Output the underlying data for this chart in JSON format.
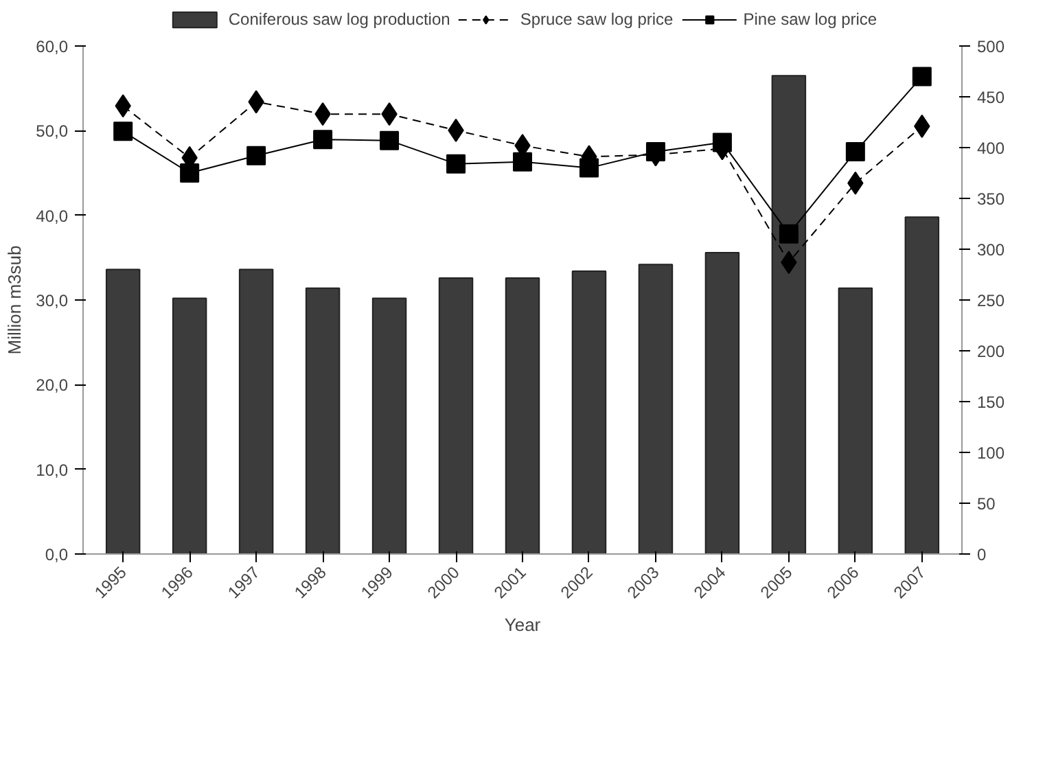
{
  "chart_data": {
    "type": "bar",
    "xlabel": "Year",
    "ylabel": "Million m3sub",
    "categories": [
      "1995",
      "1996",
      "1997",
      "1998",
      "1999",
      "2000",
      "2001",
      "2002",
      "2003",
      "2004",
      "2005",
      "2006",
      "2007"
    ],
    "ylim": [
      0,
      60
    ],
    "yticks": [
      {
        "value": 0,
        "label": "0,0"
      },
      {
        "value": 10,
        "label": "10,0"
      },
      {
        "value": 20,
        "label": "20,0"
      },
      {
        "value": 30,
        "label": "30,0"
      },
      {
        "value": 40,
        "label": "40,0"
      },
      {
        "value": 50,
        "label": "50,0"
      },
      {
        "value": 60,
        "label": "60,0"
      }
    ],
    "y2lim": [
      0,
      500
    ],
    "y2ticks": [
      0,
      50,
      100,
      150,
      200,
      250,
      300,
      350,
      400,
      450,
      500
    ],
    "legend": "top",
    "grid": false,
    "series": [
      {
        "name": "Coniferous saw log production",
        "type": "bar",
        "color": "#3c3c3c",
        "values": [
          33.6,
          30.2,
          33.6,
          31.4,
          30.2,
          32.6,
          32.6,
          33.4,
          34.2,
          35.6,
          56.5,
          31.4,
          39.8
        ]
      },
      {
        "name": "Spruce saw log price",
        "type": "line",
        "axis": "y2",
        "color": "#000000",
        "marker": "diamond",
        "line_style": "dashed",
        "values": [
          441,
          390,
          445,
          433,
          433,
          417,
          402,
          391,
          393,
          399,
          287,
          365,
          421
        ]
      },
      {
        "name": "Pine saw log price",
        "type": "line",
        "axis": "y2",
        "color": "#000000",
        "marker": "square",
        "line_style": "solid",
        "values": [
          416,
          375,
          392,
          408,
          407,
          384,
          386,
          380,
          396,
          405,
          315,
          396,
          470
        ]
      }
    ]
  }
}
